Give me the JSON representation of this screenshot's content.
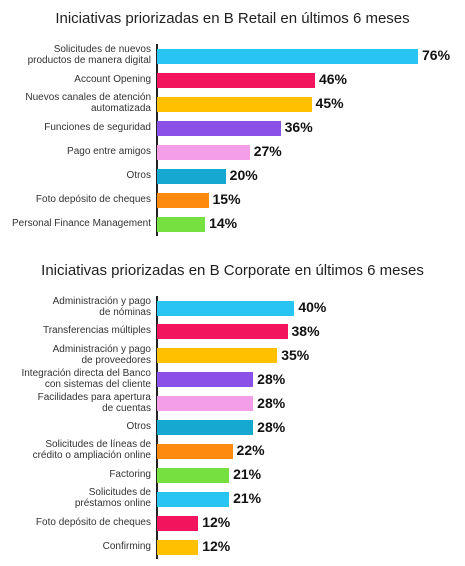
{
  "chart_data": [
    {
      "type": "bar",
      "orientation": "horizontal",
      "title": "Iniciativas priorizadas en B Retail en últimos 6 meses",
      "categories": [
        "Solicitudes de nuevos\nproductos de manera digital",
        "Account Opening",
        "Nuevos canales de atención\nautomatizada",
        "Funciones de seguridad",
        "Pago entre amigos",
        "Otros",
        "Foto depósito de cheques",
        "Personal Finance Management"
      ],
      "values": [
        76,
        46,
        45,
        36,
        27,
        20,
        15,
        14
      ],
      "value_labels": [
        "76%",
        "46%",
        "45%",
        "36%",
        "27%",
        "20%",
        "15%",
        "14%"
      ],
      "colors": [
        "#29c5f2",
        "#f2145c",
        "#ffc000",
        "#8a50e8",
        "#f49ee8",
        "#15a8d0",
        "#ff8a10",
        "#76e040"
      ],
      "unit": "%",
      "grid": false
    },
    {
      "type": "bar",
      "orientation": "horizontal",
      "title": "Iniciativas priorizadas en B Corporate en últimos 6 meses",
      "categories": [
        "Administración y pago\nde nóminas",
        "Transferencias múltiples",
        "Administración y pago\nde proveedores",
        "Integración directa del Banco\ncon sistemas del cliente",
        "Facilidades para apertura\nde cuentas",
        "Otros",
        "Solicitudes de líneas de\ncrédito o ampliación online",
        "Factoring",
        "Solicitudes de\npréstamos online",
        "Foto depósito de cheques",
        "Confirming"
      ],
      "values": [
        40,
        38,
        35,
        28,
        28,
        28,
        22,
        21,
        21,
        12,
        12
      ],
      "value_labels": [
        "40%",
        "38%",
        "35%",
        "28%",
        "28%",
        "28%",
        "22%",
        "21%",
        "21%",
        "12%",
        "12%"
      ],
      "colors": [
        "#29c5f2",
        "#f2145c",
        "#ffc000",
        "#8a50e8",
        "#f49ee8",
        "#15a8d0",
        "#ff8a10",
        "#76e040",
        "#29c5f2",
        "#f2145c",
        "#ffc000"
      ],
      "unit": "%",
      "grid": false
    }
  ]
}
